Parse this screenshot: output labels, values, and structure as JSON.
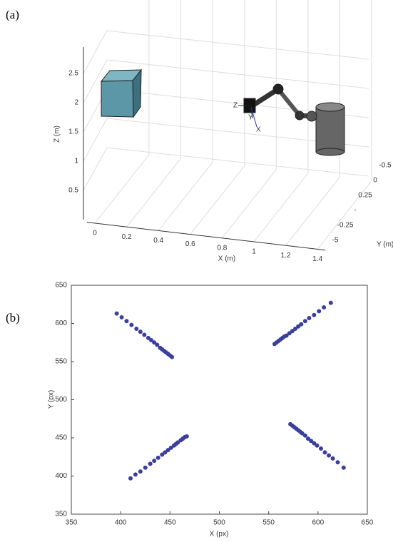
{
  "chart_data": [
    {
      "type": "scene3d",
      "label": "(a)",
      "xlabel": "X (m)",
      "ylabel": "Y (m)",
      "zlabel": "Z (m)",
      "xlim": [
        -0.05,
        1.45
      ],
      "xticks": [
        0,
        0.2,
        0.4,
        0.6,
        0.8,
        1,
        1.2,
        1.4
      ],
      "zlim": [
        0,
        2.95
      ],
      "zticks": [
        0.5,
        1,
        1.5,
        2,
        2.5
      ],
      "ytick_labels": [
        "-0.5",
        "0",
        "0.25",
        "-",
        "-0.25",
        "-5"
      ],
      "frame_labels": [
        "Z",
        "Y",
        "X"
      ],
      "grid": true
    },
    {
      "type": "scatter",
      "label": "(b)",
      "xlabel": "X (px)",
      "ylabel": "Y (px)",
      "color": "#3a3f9e",
      "xlim": [
        350,
        650
      ],
      "ylim": [
        350,
        650
      ],
      "xticks": [
        350,
        400,
        450,
        500,
        550,
        600,
        650
      ],
      "yticks": [
        350,
        400,
        450,
        500,
        550,
        600,
        650
      ],
      "x": [
        396,
        401,
        406,
        411,
        416,
        420,
        424,
        428,
        431,
        434,
        437,
        440,
        442,
        444,
        446,
        448,
        450,
        452,
        556,
        558,
        560,
        562,
        564,
        566,
        568,
        571,
        574,
        577,
        580,
        583,
        587,
        591,
        596,
        601,
        606,
        613,
        410,
        415,
        420,
        425,
        430,
        434,
        438,
        442,
        445,
        448,
        451,
        454,
        456,
        458,
        461,
        463,
        465,
        467,
        572,
        574,
        576,
        578,
        580,
        582,
        584,
        587,
        590,
        593,
        596,
        599,
        603,
        607,
        611,
        615,
        620,
        626
      ],
      "y": [
        613,
        608,
        603,
        598,
        593,
        589,
        585,
        581,
        578,
        575,
        572,
        568,
        566,
        564,
        562,
        560,
        558,
        556,
        573,
        575,
        577,
        579,
        581,
        583,
        584,
        587,
        590,
        593,
        596,
        599,
        603,
        607,
        611,
        616,
        621,
        627,
        397,
        402,
        406,
        411,
        416,
        420,
        424,
        428,
        431,
        434,
        437,
        440,
        442,
        444,
        447,
        449,
        451,
        452,
        468,
        466,
        464,
        462,
        460,
        458,
        456,
        453,
        449,
        446,
        443,
        440,
        436,
        431,
        427,
        423,
        418,
        411
      ]
    }
  ]
}
